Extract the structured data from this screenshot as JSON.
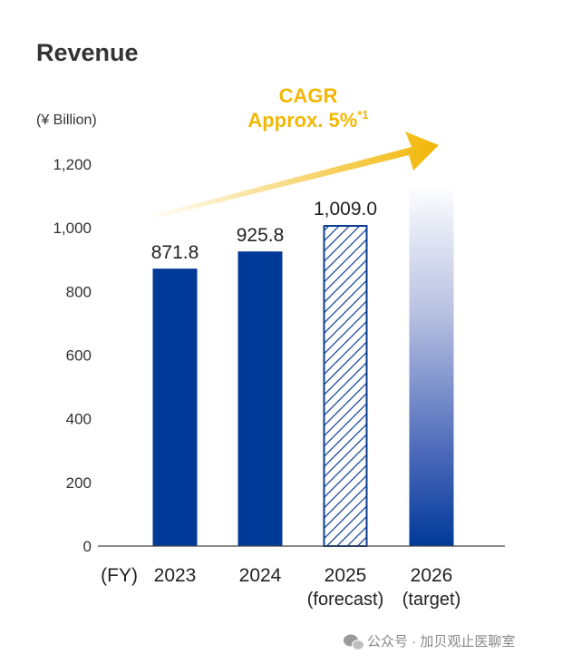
{
  "chart_data": {
    "type": "bar",
    "title": "Revenue",
    "unit_label": "(¥ Billion)",
    "x_prefix": "(FY)",
    "categories": [
      "2023",
      "2024",
      "2025",
      "2026"
    ],
    "category_sublabels": [
      "",
      "",
      "(forecast)",
      "(target)"
    ],
    "values": [
      871.8,
      925.8,
      1009.0,
      null
    ],
    "value_labels": [
      "871.8",
      "925.8",
      "1,009.0",
      ""
    ],
    "bar_styles": [
      "solid",
      "solid",
      "hatched",
      "gradient"
    ],
    "ylim": [
      0,
      1200
    ],
    "yticks": [
      0,
      200,
      400,
      600,
      800,
      1000,
      1200
    ],
    "ytick_labels": [
      "0",
      "200",
      "400",
      "600",
      "800",
      "1,000",
      "1,200"
    ],
    "grid": false,
    "colors": {
      "bar": "#003a99",
      "hatch": "#0a3d91",
      "arrow": "#f2b705",
      "gradient_top": "#ffffff"
    },
    "annotation": {
      "line1": "CAGR",
      "line2": "Approx. 5%",
      "superscript": "*1"
    }
  },
  "watermark": {
    "icon": "wechat-icon",
    "text": "公众号 · 加贝观止医聊室"
  }
}
